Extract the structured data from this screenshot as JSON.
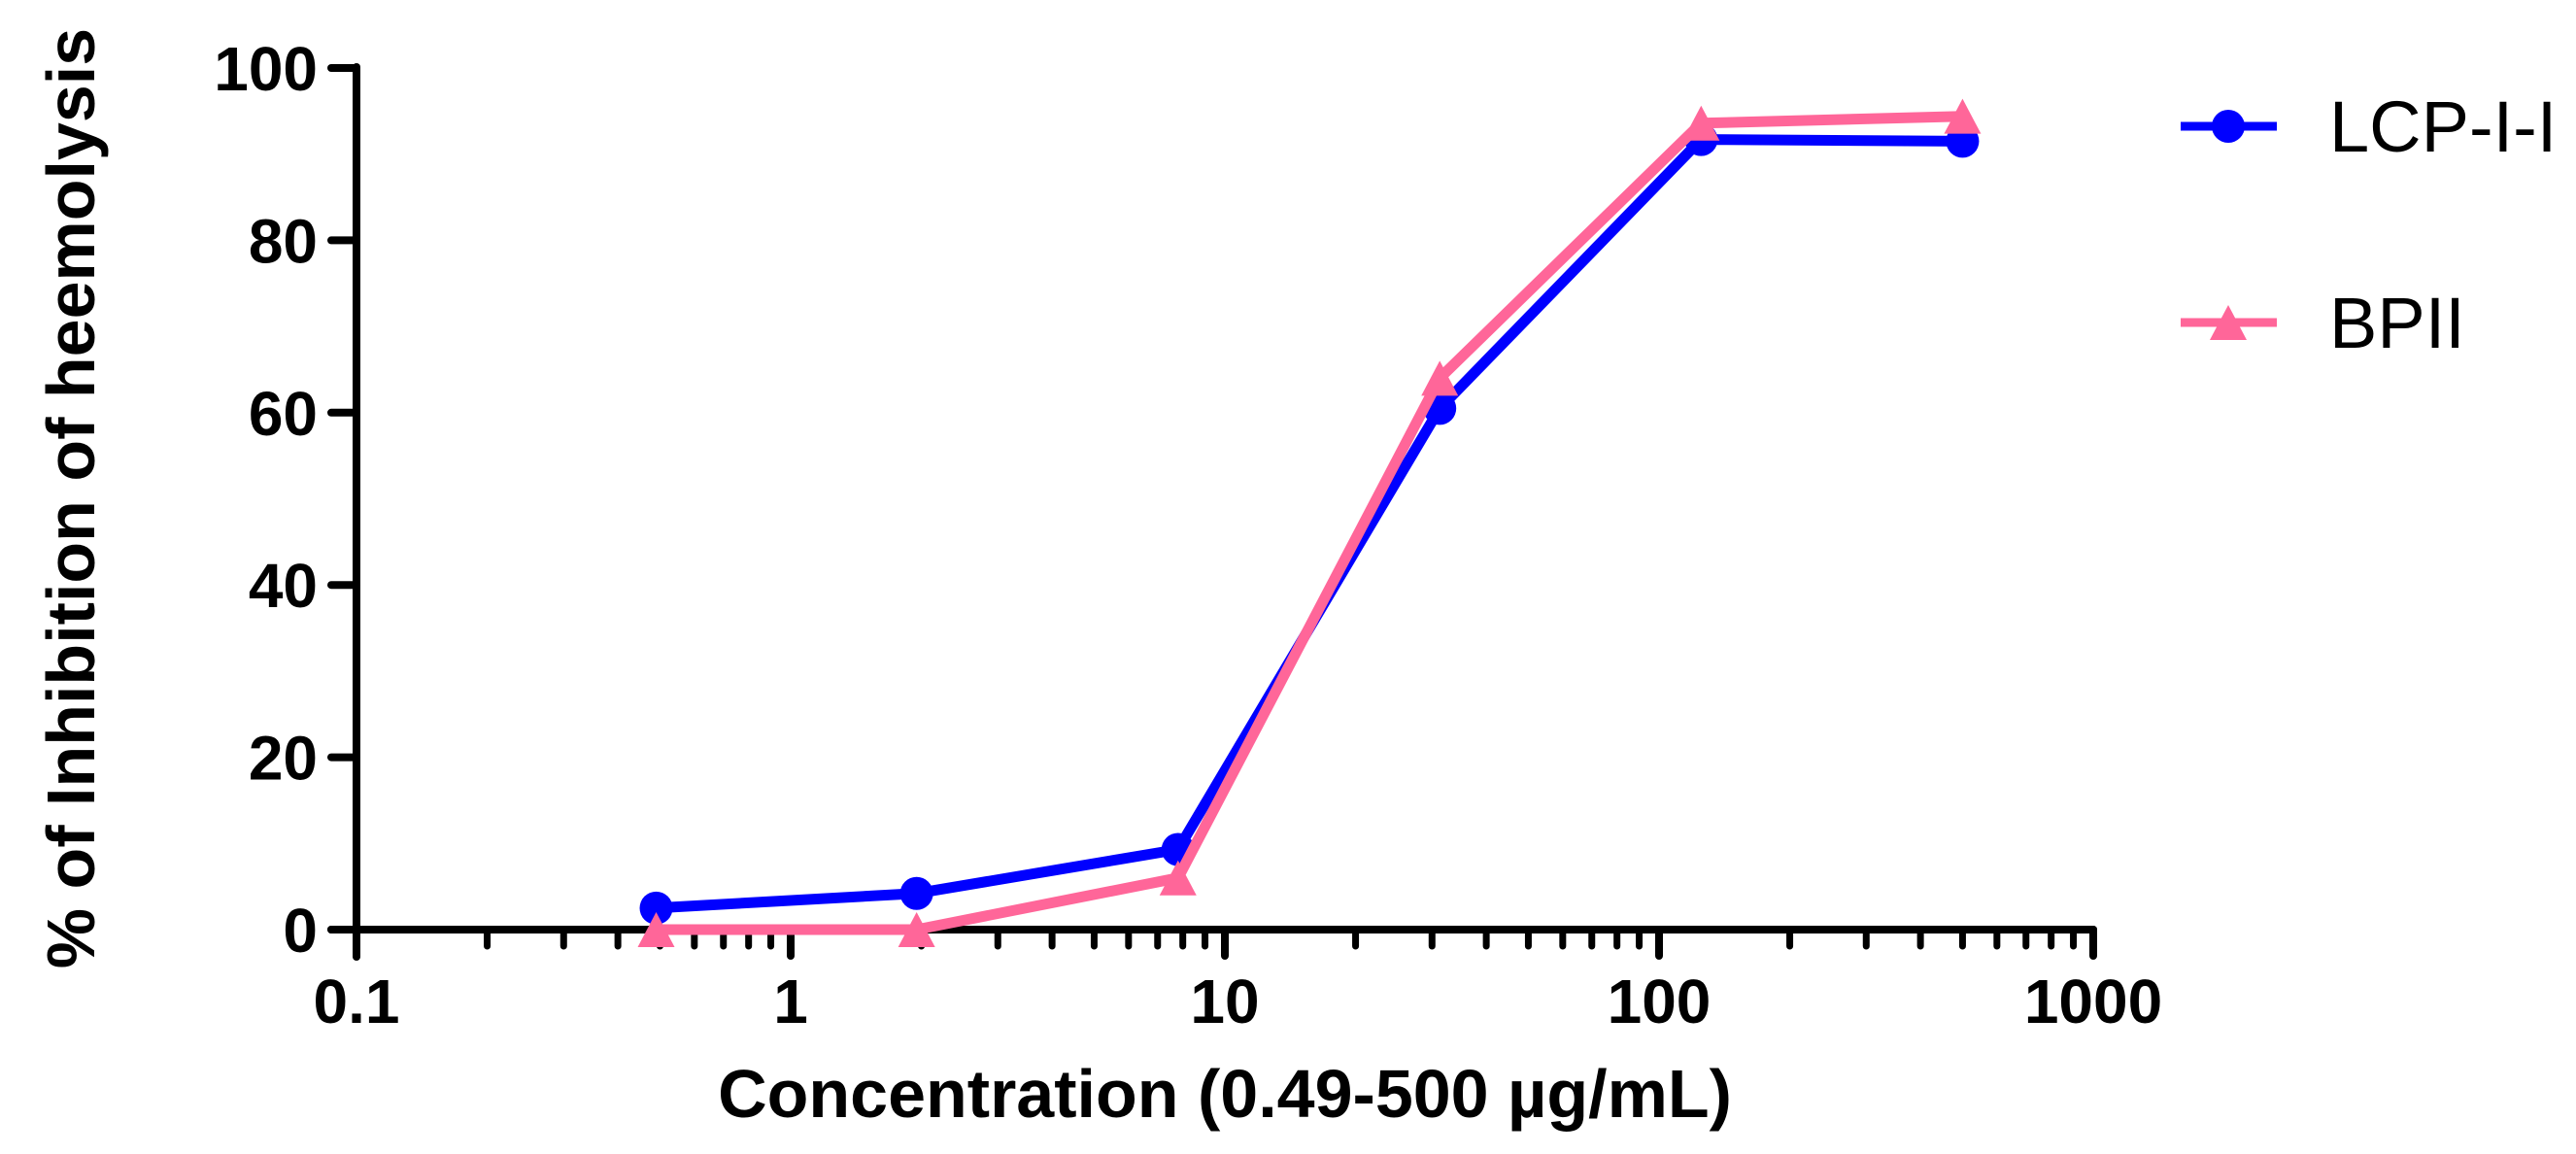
{
  "chart_data": {
    "type": "line",
    "title": "",
    "xlabel": "Concentration (0.49-500 µg/mL)",
    "ylabel": "% of Inhibition of heemolysis",
    "xscale": "log",
    "xlim": [
      0.1,
      1000
    ],
    "ylim": [
      0,
      100
    ],
    "x_ticks": [
      0.1,
      1,
      10,
      100,
      1000
    ],
    "x_tick_labels": [
      "0.1",
      "1",
      "10",
      "100",
      "1000"
    ],
    "y_ticks": [
      0,
      20,
      40,
      60,
      80,
      100
    ],
    "y_tick_labels": [
      "0",
      "20",
      "40",
      "60",
      "80",
      "100"
    ],
    "grid": false,
    "legend_position": "right-top",
    "x": [
      0.49,
      1.95,
      7.8,
      31.25,
      125,
      500
    ],
    "series": [
      {
        "name": "LCP-I-I",
        "marker": "circle",
        "color": "#0000ff",
        "values": [
          2.5,
          4.2,
          9.3,
          60.5,
          91.7,
          91.5
        ]
      },
      {
        "name": "BPII",
        "marker": "triangle",
        "color": "#ff6699",
        "values": [
          0,
          0,
          6.0,
          64.0,
          93.6,
          94.4
        ]
      }
    ]
  },
  "legend": {
    "items": [
      {
        "label": "LCP-I-I",
        "color": "#0000ff",
        "marker": "circle"
      },
      {
        "label": "BPII",
        "color": "#ff6699",
        "marker": "triangle"
      }
    ]
  },
  "axes": {
    "x_title": "Concentration (0.49-500 µg/mL)",
    "y_title": "% of Inhibition of heemolysis"
  }
}
